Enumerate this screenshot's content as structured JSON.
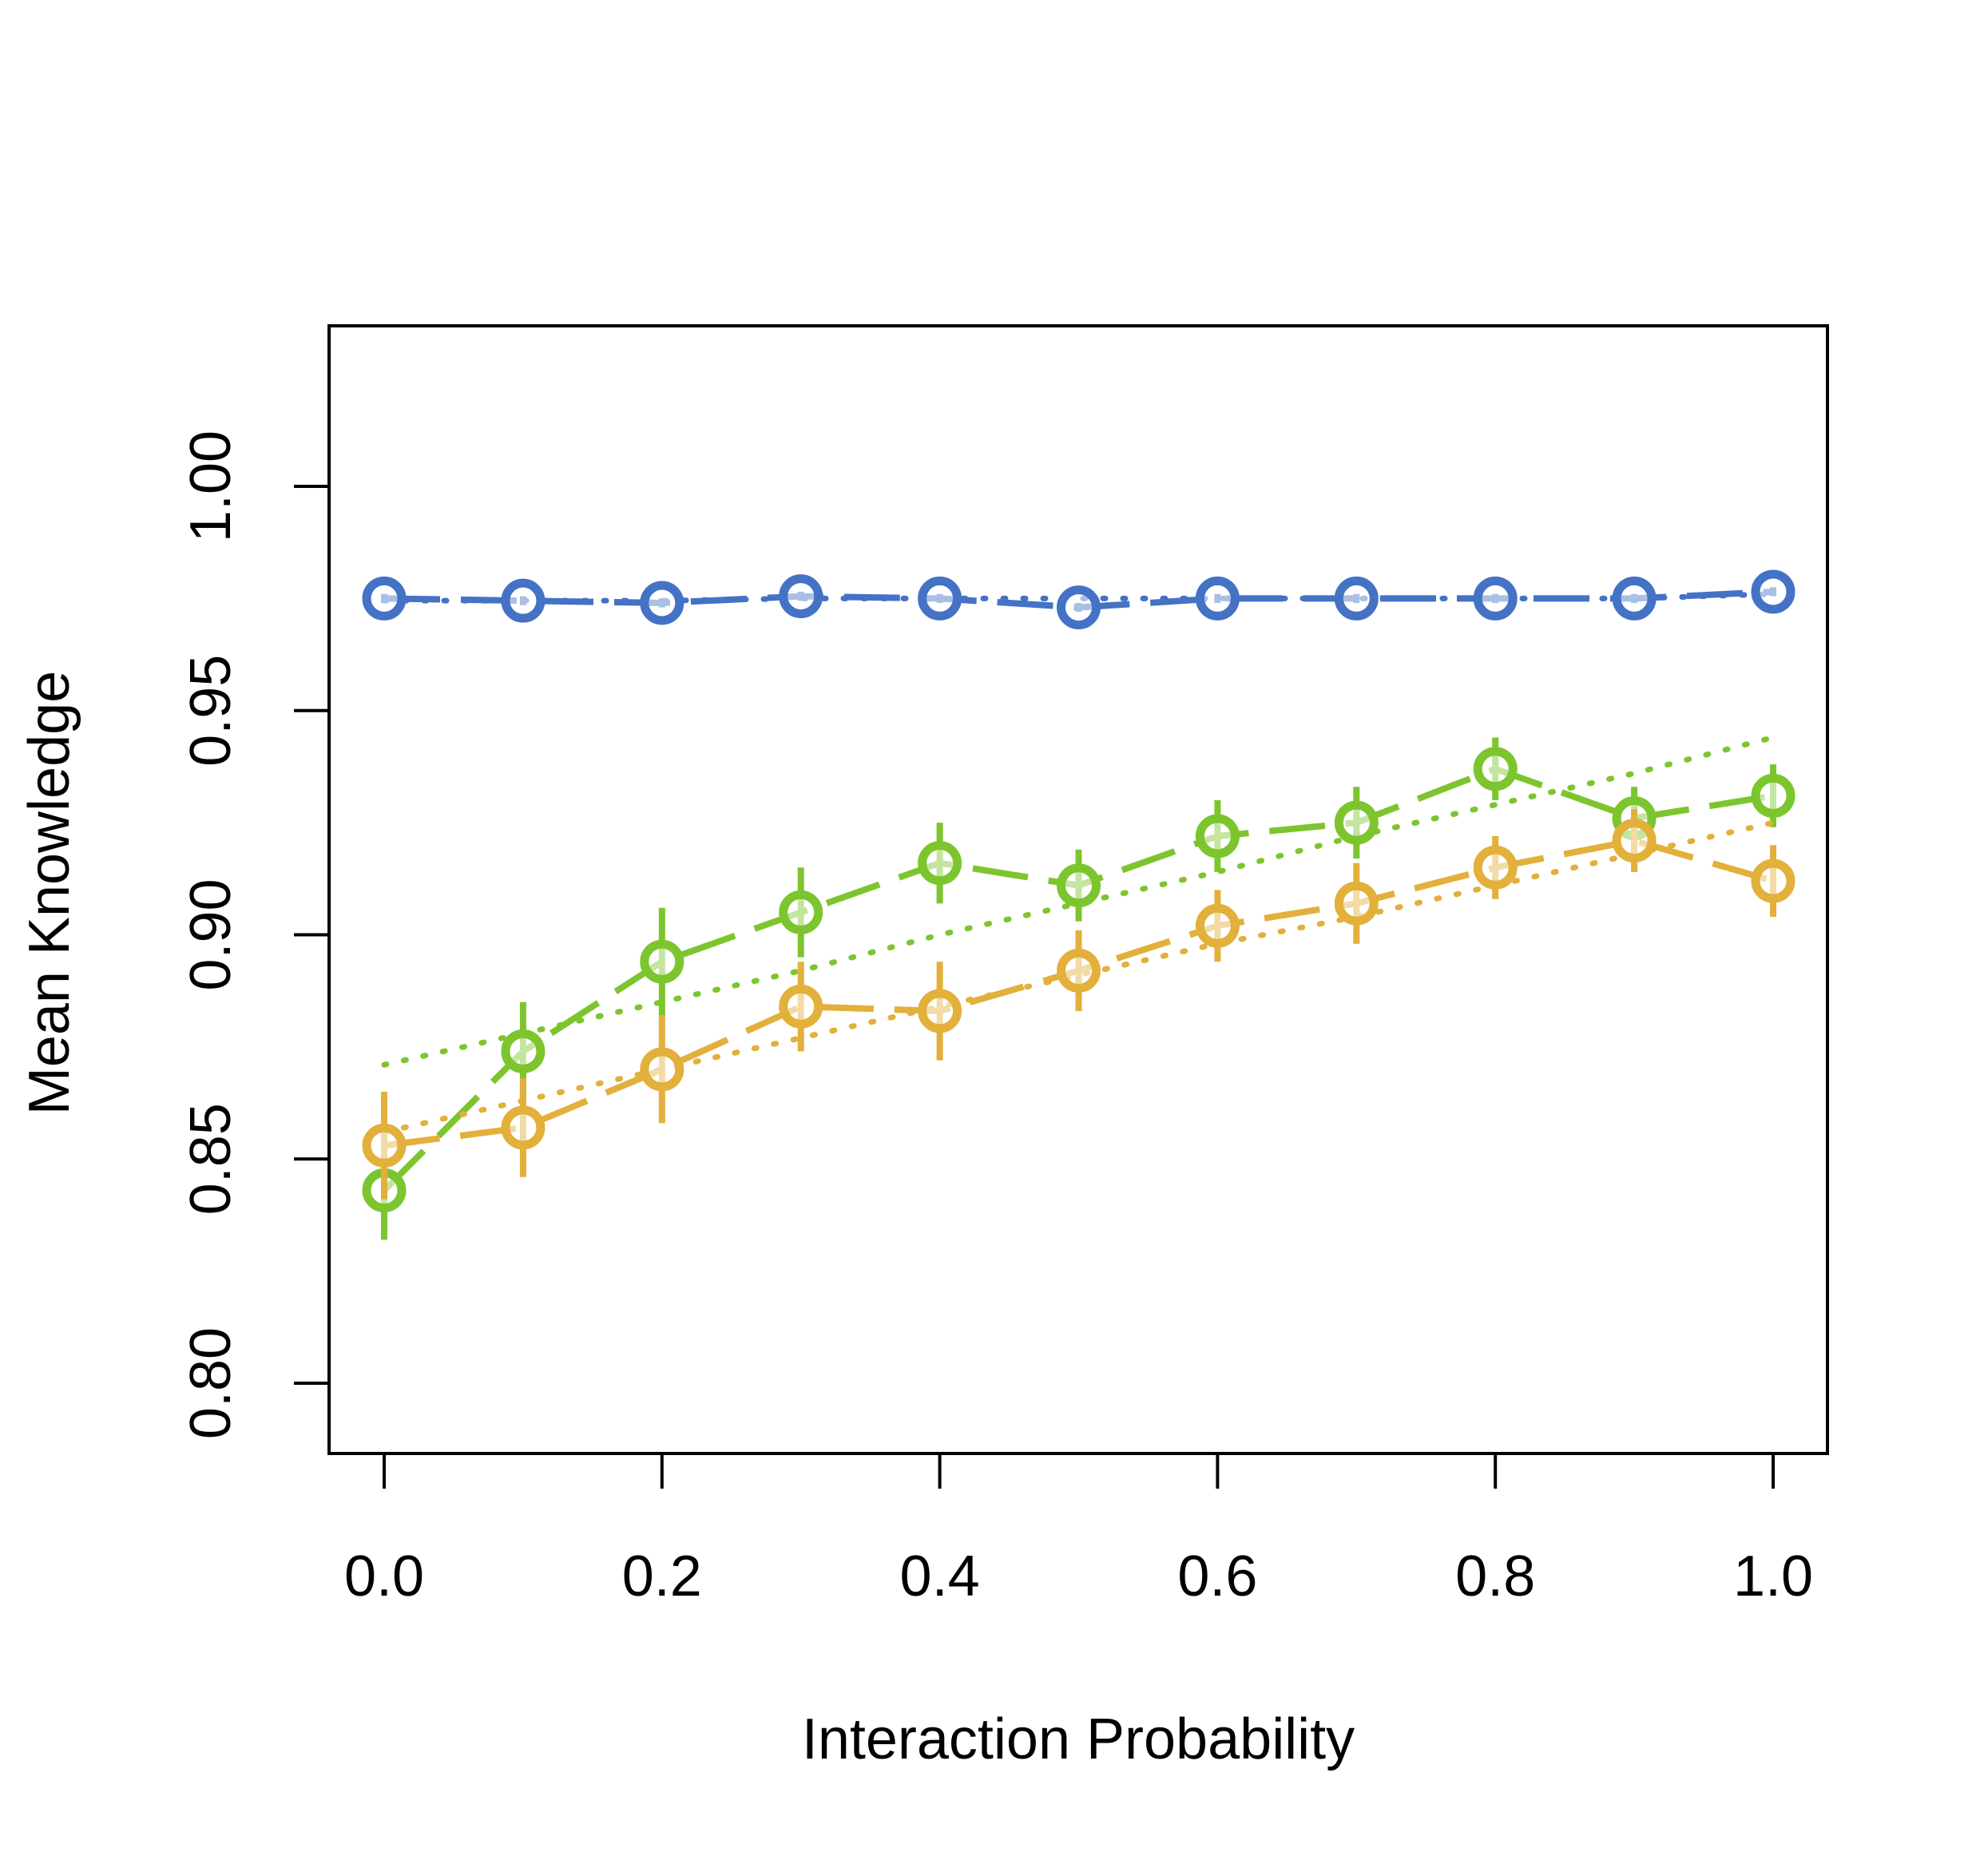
{
  "chart_data": {
    "type": "line",
    "xlabel": "Interaction Probability",
    "ylabel": "Mean Knowledge",
    "xlim": [
      0,
      1
    ],
    "ylim": [
      0.8,
      1.02
    ],
    "x_ticks": [
      "0.0",
      "0.2",
      "0.4",
      "0.6",
      "0.8",
      "1.0"
    ],
    "y_ticks": [
      "0.80",
      "0.85",
      "0.90",
      "0.95",
      "1.00"
    ],
    "grid": false,
    "legend": "none",
    "x": [
      0.0,
      0.1,
      0.2,
      0.3,
      0.4,
      0.5,
      0.6,
      0.7,
      0.8,
      0.9,
      1.0
    ],
    "series": [
      {
        "color": "#4472C4",
        "values": [
          0.975,
          0.9745,
          0.974,
          0.9755,
          0.975,
          0.973,
          0.975,
          0.975,
          0.975,
          0.975,
          0.9765
        ],
        "errors": [
          0.001,
          0.001,
          0.001,
          0.001,
          0.001,
          0.001,
          0.001,
          0.001,
          0.001,
          0.001,
          0.001
        ],
        "trend": [
          0.9745,
          0.9745,
          0.9745,
          0.975,
          0.975,
          0.975,
          0.975,
          0.975,
          0.975,
          0.975,
          0.976
        ]
      },
      {
        "color": "#7DC52E",
        "values": [
          0.843,
          0.874,
          0.894,
          0.905,
          0.916,
          0.911,
          0.922,
          0.925,
          0.937,
          0.926,
          0.931
        ],
        "errors": [
          0.011,
          0.011,
          0.012,
          0.01,
          0.009,
          0.008,
          0.008,
          0.008,
          0.007,
          0.007,
          0.007
        ],
        "trend": [
          0.871,
          0.878,
          0.885,
          0.892,
          0.9,
          0.907,
          0.914,
          0.922,
          0.929,
          0.936,
          0.944
        ]
      },
      {
        "color": "#E2B03B",
        "values": [
          0.853,
          0.857,
          0.87,
          0.884,
          0.883,
          0.892,
          0.902,
          0.907,
          0.915,
          0.921,
          0.912
        ],
        "errors": [
          0.012,
          0.011,
          0.012,
          0.01,
          0.011,
          0.009,
          0.008,
          0.009,
          0.007,
          0.007,
          0.008
        ],
        "trend": [
          0.856,
          0.863,
          0.87,
          0.877,
          0.884,
          0.891,
          0.898,
          0.904,
          0.911,
          0.918,
          0.925
        ]
      }
    ]
  }
}
